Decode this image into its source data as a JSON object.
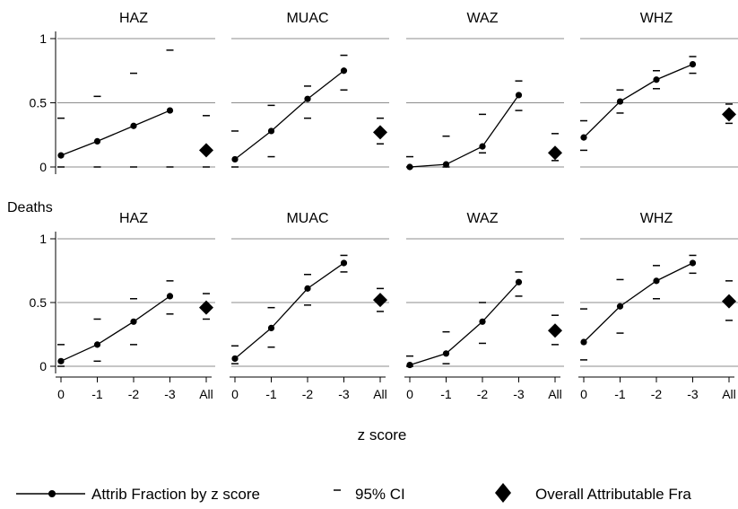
{
  "chart_data": {
    "type": "line",
    "row_titles": [
      "",
      "Deaths"
    ],
    "xlabel": "z score",
    "categories": [
      "0",
      "-1",
      "-2",
      "-3",
      "All"
    ],
    "ylim": [
      0,
      1
    ],
    "yticks": [
      "0",
      "0.5",
      "1"
    ],
    "legend": {
      "position": "bottom",
      "line_label": "Attrib Fraction by z score",
      "ci_label": "95% CI",
      "overall_label": "Overall Attributable Fra"
    },
    "panels": [
      {
        "row": 0,
        "col": 0,
        "title": "HAZ",
        "values": [
          0.09,
          0.2,
          0.32,
          0.44
        ],
        "ci_low": [
          0,
          0,
          0,
          0
        ],
        "ci_high": [
          0.38,
          0.55,
          0.73,
          0.91
        ],
        "overall": 0.13,
        "overall_ci": [
          0,
          0.4
        ]
      },
      {
        "row": 0,
        "col": 1,
        "title": "MUAC",
        "values": [
          0.06,
          0.28,
          0.53,
          0.75
        ],
        "ci_low": [
          0,
          0.08,
          0.38,
          0.6
        ],
        "ci_high": [
          0.28,
          0.48,
          0.63,
          0.87
        ],
        "overall": 0.27,
        "overall_ci": [
          0.18,
          0.38
        ]
      },
      {
        "row": 0,
        "col": 2,
        "title": "WAZ",
        "values": [
          0.0,
          0.02,
          0.16,
          0.56
        ],
        "ci_low": [
          0,
          0,
          0.11,
          0.44
        ],
        "ci_high": [
          0.08,
          0.24,
          0.41,
          0.67
        ],
        "overall": 0.11,
        "overall_ci": [
          0.05,
          0.26
        ]
      },
      {
        "row": 0,
        "col": 3,
        "title": "WHZ",
        "values": [
          0.23,
          0.51,
          0.68,
          0.8
        ],
        "ci_low": [
          0.13,
          0.42,
          0.61,
          0.73
        ],
        "ci_high": [
          0.36,
          0.6,
          0.75,
          0.86
        ],
        "overall": 0.41,
        "overall_ci": [
          0.34,
          0.49
        ]
      },
      {
        "row": 1,
        "col": 0,
        "title": "HAZ",
        "values": [
          0.04,
          0.17,
          0.35,
          0.55
        ],
        "ci_low": [
          0.0,
          0.04,
          0.17,
          0.41
        ],
        "ci_high": [
          0.17,
          0.37,
          0.53,
          0.67
        ],
        "overall": 0.46,
        "overall_ci": [
          0.37,
          0.57
        ]
      },
      {
        "row": 1,
        "col": 1,
        "title": "MUAC",
        "values": [
          0.06,
          0.3,
          0.61,
          0.81
        ],
        "ci_low": [
          0.02,
          0.15,
          0.48,
          0.74
        ],
        "ci_high": [
          0.16,
          0.46,
          0.72,
          0.87
        ],
        "overall": 0.52,
        "overall_ci": [
          0.43,
          0.61
        ]
      },
      {
        "row": 1,
        "col": 2,
        "title": "WAZ",
        "values": [
          0.01,
          0.1,
          0.35,
          0.66
        ],
        "ci_low": [
          0,
          0.02,
          0.18,
          0.55
        ],
        "ci_high": [
          0.08,
          0.27,
          0.5,
          0.74
        ],
        "overall": 0.28,
        "overall_ci": [
          0.17,
          0.4
        ]
      },
      {
        "row": 1,
        "col": 3,
        "title": "WHZ",
        "values": [
          0.19,
          0.47,
          0.67,
          0.81
        ],
        "ci_low": [
          0.05,
          0.26,
          0.53,
          0.73
        ],
        "ci_high": [
          0.45,
          0.68,
          0.79,
          0.87
        ],
        "overall": 0.51,
        "overall_ci": [
          0.36,
          0.67
        ]
      }
    ]
  }
}
